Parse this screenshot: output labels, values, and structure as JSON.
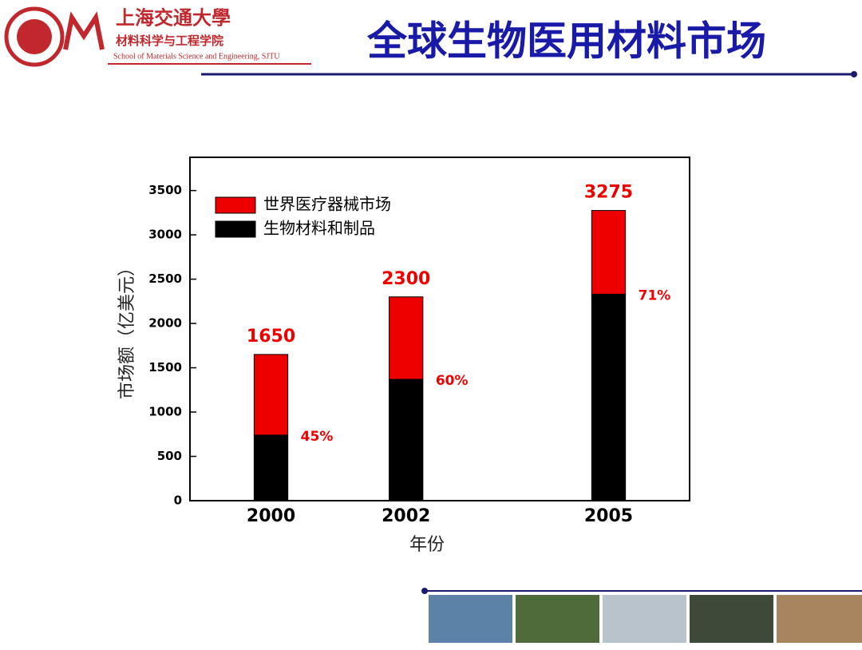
{
  "header": {
    "university": "上海交通大學",
    "school": "材料科学与工程学院",
    "school_en": "School of Materials Science and Engineering, SJTU",
    "title": "全球生物医用材料市场"
  },
  "chart_data": {
    "type": "stacked_bar",
    "x_label": "年份",
    "y_label": "市场额（亿美元）",
    "x": [
      2000,
      2002,
      2005
    ],
    "series": [
      {
        "name": "生物材料和制品",
        "color": "#000000",
        "values": [
          740,
          1370,
          2330
        ]
      },
      {
        "name": "世界医疗器械市场",
        "color": "#ee0000",
        "values": [
          910,
          930,
          945
        ]
      }
    ],
    "totals": [
      1650,
      2300,
      3275
    ],
    "shares": [
      45,
      60,
      71
    ],
    "share_labels": [
      "45%",
      "60%",
      "71%"
    ],
    "xlim": [
      1998.8,
      2006.2
    ],
    "xticks": [
      2000,
      2002,
      2005
    ],
    "ylim": [
      0,
      3875
    ],
    "yticks": [
      0,
      500,
      1000,
      1500,
      2000,
      2500,
      3000,
      3500
    ],
    "legend": "upper left"
  }
}
